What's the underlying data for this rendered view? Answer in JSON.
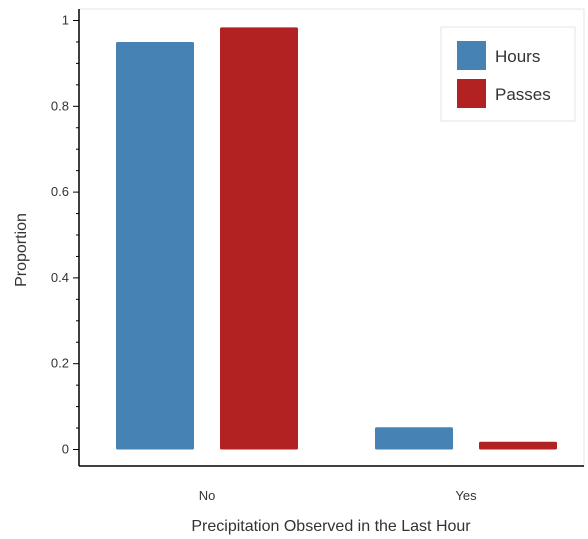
{
  "chart_data": {
    "type": "bar",
    "title": "",
    "xlabel": "Precipitation Observed in the Last Hour",
    "ylabel": "Proportion",
    "categories": [
      "No",
      "Yes"
    ],
    "series": [
      {
        "name": "Hours",
        "color": "#4682b4",
        "values": [
          0.95,
          0.052
        ]
      },
      {
        "name": "Passes",
        "color": "#b22222",
        "values": [
          0.984,
          0.018
        ]
      }
    ],
    "ylim": [
      -0.04,
      1.03
    ],
    "yticks": [
      0,
      0.2,
      0.4,
      0.6,
      0.8,
      1
    ],
    "ytick_labels": [
      "0",
      "0.2",
      "0.4",
      "0.6",
      "0.8",
      "1"
    ],
    "grid": false,
    "legend_position": "top-right"
  }
}
